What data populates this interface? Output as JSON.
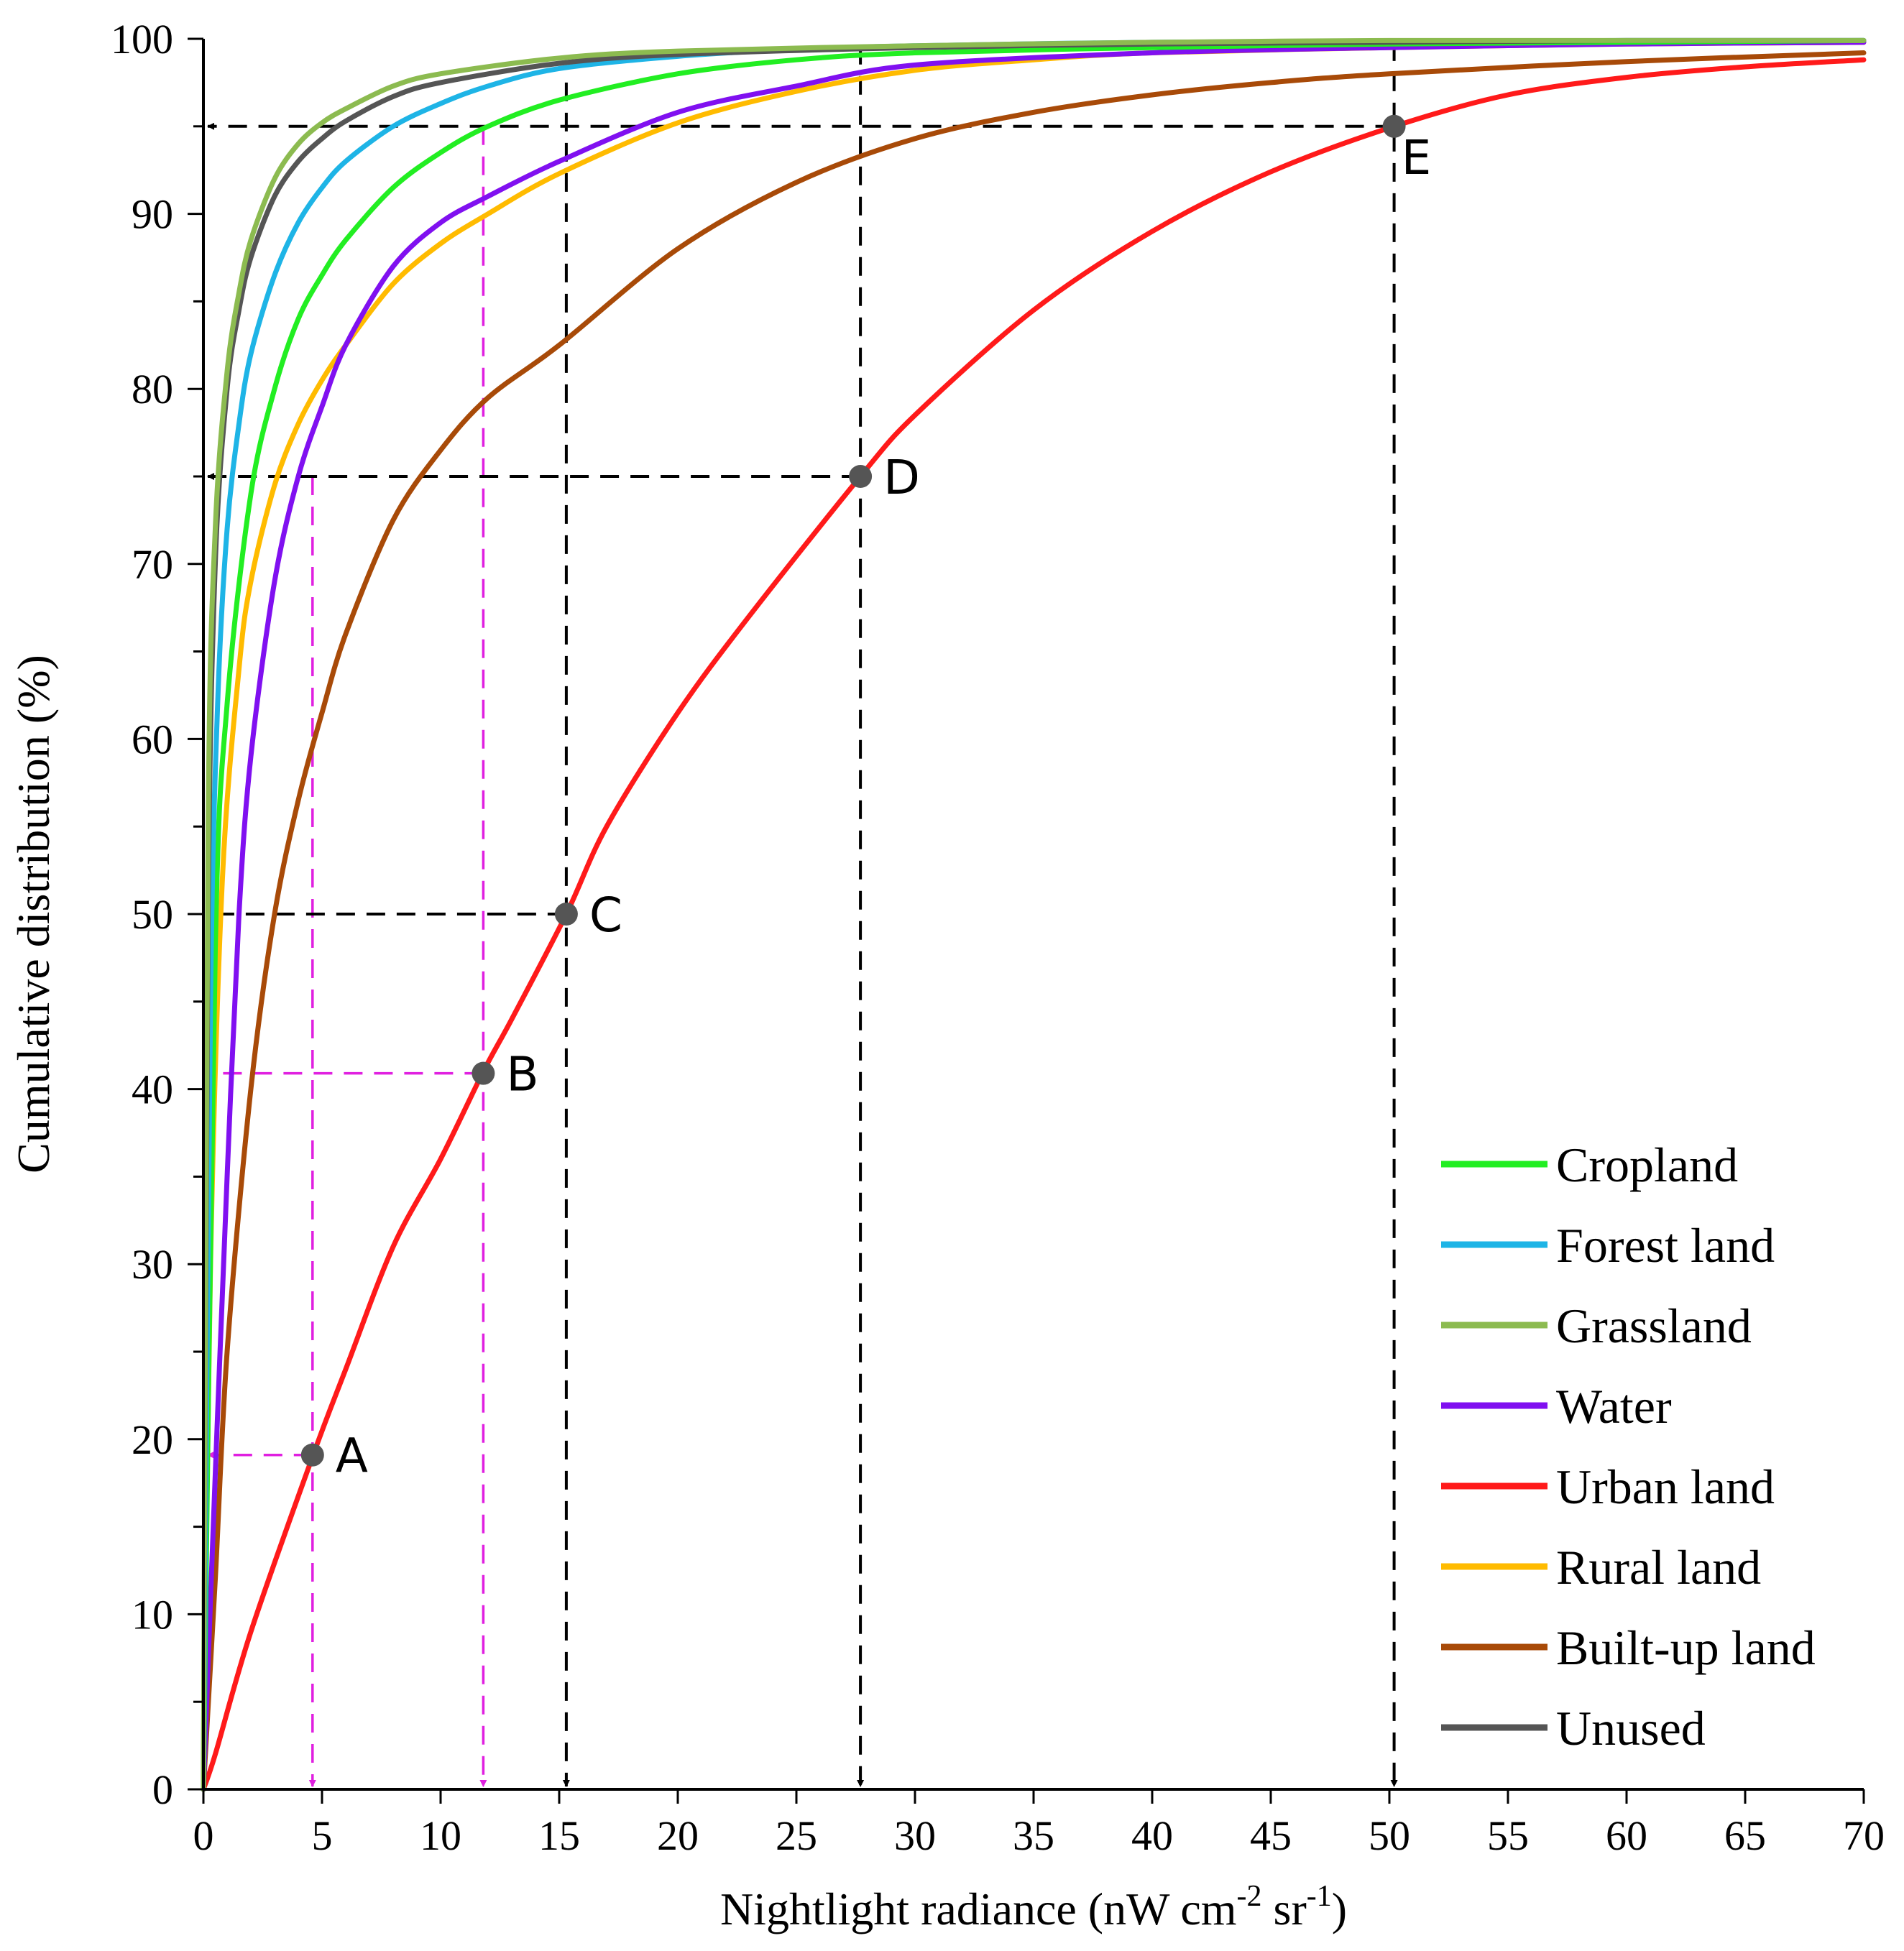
{
  "chart_data": {
    "type": "line",
    "title": "",
    "xlabel": "Nightlight radiance (nW cm",
    "xlabel_sup1": "-2",
    "xlabel_mid": " sr",
    "xlabel_sup2": "-1",
    "xlabel_end": ")",
    "ylabel": "Cumulative distribution (%)",
    "xlim": [
      0,
      70
    ],
    "ylim": [
      0,
      100
    ],
    "x_ticks": [
      "0",
      "5",
      "10",
      "15",
      "20",
      "25",
      "30",
      "35",
      "40",
      "45",
      "50",
      "55",
      "60",
      "65",
      "70"
    ],
    "y_ticks": [
      "0",
      "10",
      "20",
      "30",
      "40",
      "50",
      "60",
      "70",
      "80",
      "90",
      "100"
    ],
    "series": [
      {
        "name": "Cropland",
        "color": "#22ee22",
        "x": [
          0,
          0.5,
          1,
          2,
          3,
          4,
          5,
          6,
          8,
          10,
          12,
          15,
          20,
          25,
          30,
          40,
          50,
          60,
          70
        ],
        "values": [
          0,
          48,
          62,
          74,
          80,
          84,
          86.5,
          88.5,
          91.5,
          93.5,
          95,
          96.5,
          98,
          98.8,
          99.2,
          99.5,
          99.7,
          99.8,
          99.9
        ]
      },
      {
        "name": "Forest land",
        "color": "#1eb4e6",
        "x": [
          0,
          0.3,
          0.6,
          1,
          1.5,
          2,
          3,
          4,
          5,
          6,
          8,
          10,
          12,
          15,
          20,
          25,
          30,
          40,
          50,
          60,
          70
        ],
        "values": [
          0,
          45,
          62,
          72,
          78,
          82,
          86.5,
          89.5,
          91.5,
          93,
          95,
          96.3,
          97.3,
          98.3,
          99,
          99.4,
          99.6,
          99.8,
          99.85,
          99.9,
          99.9
        ]
      },
      {
        "name": "Grassland",
        "color": "#8cbb50",
        "x": [
          0,
          0.2,
          0.5,
          1,
          1.5,
          2,
          3,
          4,
          5,
          6,
          8,
          10,
          15,
          20,
          30,
          40,
          50,
          60,
          70
        ],
        "values": [
          0,
          55,
          72,
          81,
          85.5,
          88.5,
          92,
          94,
          95.2,
          96,
          97.3,
          98,
          98.9,
          99.3,
          99.6,
          99.8,
          99.9,
          99.9,
          99.9
        ]
      },
      {
        "name": "Water",
        "color": "#8010f0",
        "x": [
          0,
          0.5,
          1,
          1.5,
          2,
          3,
          4,
          5,
          6,
          8,
          10,
          12,
          15,
          20,
          25,
          30,
          40,
          50,
          60,
          70
        ],
        "values": [
          0,
          18,
          35,
          50,
          59,
          69,
          75,
          79,
          82.5,
          87,
          89.5,
          91,
          93,
          95.8,
          97.3,
          98.5,
          99.2,
          99.5,
          99.7,
          99.8
        ]
      },
      {
        "name": "Urban land",
        "color": "#ff1a1a",
        "x": [
          0,
          0.5,
          2,
          4.6,
          6,
          8,
          10,
          11.8,
          13,
          15.3,
          17,
          20,
          23,
          27.7,
          30,
          35,
          40,
          45,
          50.2,
          55,
          60,
          65,
          70
        ],
        "values": [
          0,
          2,
          9,
          19,
          24,
          31,
          36,
          41,
          44,
          50,
          55,
          61.5,
          67,
          75,
          78.5,
          84.5,
          89,
          92.4,
          95,
          96.8,
          97.8,
          98.4,
          98.8
        ]
      },
      {
        "name": "Rural land",
        "color": "#ffbb00",
        "x": [
          0,
          0.3,
          0.8,
          1.5,
          2,
          3,
          4,
          5,
          6,
          8,
          10,
          12,
          15,
          20,
          25,
          30,
          35,
          40,
          50,
          60,
          70
        ],
        "values": [
          0,
          30,
          52,
          64,
          69,
          74.5,
          78,
          80.5,
          82.5,
          86,
          88.3,
          90,
          92.3,
          95.2,
          97,
          98.2,
          98.8,
          99.2,
          99.5,
          99.7,
          99.8
        ]
      },
      {
        "name": "Built-up land",
        "color": "#a84a08",
        "x": [
          0,
          0.5,
          1,
          2,
          3,
          4,
          5,
          6,
          8,
          10,
          12,
          15,
          20,
          25,
          30,
          35,
          40,
          45,
          50,
          60,
          70
        ],
        "values": [
          0,
          12,
          25,
          40,
          50,
          56.5,
          61.5,
          66,
          72.5,
          76.5,
          79.5,
          82.5,
          88,
          91.8,
          94.3,
          95.8,
          96.8,
          97.5,
          98,
          98.7,
          99.2
        ]
      },
      {
        "name": "Unused",
        "color": "#555555",
        "x": [
          0,
          0.2,
          0.5,
          1,
          1.5,
          2,
          3,
          4,
          5,
          6,
          8,
          10,
          15,
          20,
          30,
          40,
          50,
          60,
          70
        ],
        "values": [
          0,
          50,
          70,
          80,
          84.5,
          87.5,
          91,
          93,
          94.3,
          95.3,
          96.7,
          97.5,
          98.6,
          99.1,
          99.5,
          99.7,
          99.8,
          99.9,
          99.9
        ]
      }
    ],
    "annotations": [
      {
        "label": "A",
        "x": 4.6,
        "y": 19.1,
        "line_color": "#e020e0"
      },
      {
        "label": "B",
        "x": 11.8,
        "y": 40.9,
        "line_color": "#e020e0"
      },
      {
        "label": "C",
        "x": 15.3,
        "y": 50.0,
        "line_color": "#000000"
      },
      {
        "label": "D",
        "x": 27.7,
        "y": 75.0,
        "line_color": "#000000"
      },
      {
        "label": "E",
        "x": 50.2,
        "y": 95.0,
        "line_color": "#000000"
      }
    ],
    "marker_color": "#555555",
    "legend_position": "bottom-right",
    "grid": false
  }
}
